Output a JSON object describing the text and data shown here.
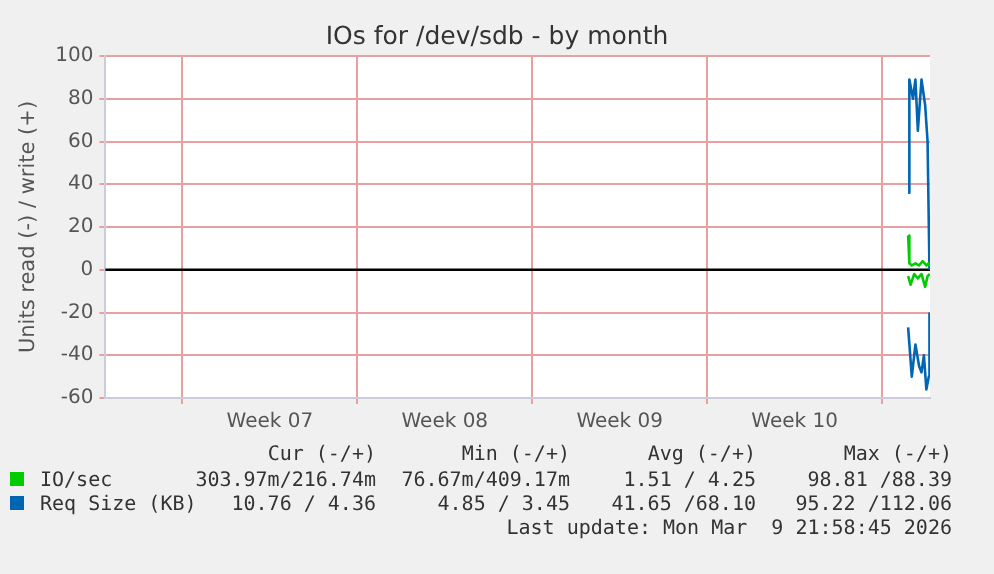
{
  "chart_data": {
    "type": "line",
    "title": "IOs for /dev/sdb - by month",
    "ylabel": "Units read (-) / write (+)",
    "xlim": [
      "2026-02-04T22:00",
      "2026-03-09T22:00"
    ],
    "xticks": [
      {
        "value": "2026-02-08T00:00",
        "label": null
      },
      {
        "value": "2026-02-11T12:00",
        "label": "Week 07"
      },
      {
        "value": "2026-02-15T00:00",
        "label": null
      },
      {
        "value": "2026-02-18T12:00",
        "label": "Week 08"
      },
      {
        "value": "2026-02-22T00:00",
        "label": null
      },
      {
        "value": "2026-02-25T12:00",
        "label": "Week 09"
      },
      {
        "value": "2026-03-01T00:00",
        "label": null
      },
      {
        "value": "2026-03-04T12:00",
        "label": "Week 10"
      },
      {
        "value": "2026-03-08T00:00",
        "label": null
      }
    ],
    "ylim": [
      -60,
      100
    ],
    "yticks": [
      -60,
      -40,
      -20,
      0,
      20,
      40,
      60,
      80,
      100
    ],
    "grid": true,
    "legend": "bottom left",
    "marker": "none",
    "line_style": "solid",
    "ref_lines": [
      {
        "axis": "y",
        "value": 0,
        "color": "#000000"
      }
    ],
    "series": [
      {
        "name": "IO/sec",
        "color": "#00cc00",
        "x": [
          "2026-03-09T01:00",
          "2026-03-09T02:10",
          "2026-03-09T04:30",
          "2026-03-09T08:00",
          "2026-03-09T11:30",
          "2026-03-09T15:00",
          "2026-03-09T18:30",
          "2026-03-09T20:50",
          "2026-03-09T21:50"
        ],
        "values": [
          16,
          3,
          2,
          3,
          2,
          4,
          2,
          3,
          2
        ]
      },
      {
        "color": "#00cc00",
        "x": [
          "2026-03-09T01:00",
          "2026-03-09T03:20",
          "2026-03-09T06:50",
          "2026-03-09T10:20",
          "2026-03-09T13:50",
          "2026-03-09T17:20",
          "2026-03-09T19:40",
          "2026-03-09T21:50"
        ],
        "values": [
          -3,
          -7,
          -2,
          -4,
          -2,
          -8,
          -3,
          -2
        ]
      },
      {
        "name": "Req Size (KB)",
        "color": "#0066b3",
        "x": [
          "2026-03-09T01:00",
          "2026-03-09T02:10",
          "2026-03-09T05:40",
          "2026-03-09T08:00",
          "2026-03-09T10:20",
          "2026-03-09T13:50",
          "2026-03-09T17:20",
          "2026-03-09T19:40",
          "2026-03-09T21:30"
        ],
        "values": [
          36,
          89,
          80,
          89,
          65,
          89,
          77,
          60,
          0
        ]
      },
      {
        "color": "#0066b3",
        "x": [
          "2026-03-09T01:00",
          "2026-03-09T04:30",
          "2026-03-09T08:00",
          "2026-03-09T11:30",
          "2026-03-09T13:50",
          "2026-03-09T16:10",
          "2026-03-09T18:30",
          "2026-03-09T20:50",
          "2026-03-09T21:30"
        ],
        "values": [
          -27,
          -50,
          -35,
          -45,
          -48,
          -40,
          -56,
          -50,
          -20
        ]
      }
    ],
    "annotations": [
      "Cur (-/+)",
      "Min (-/+)",
      "Avg (-/+)",
      "Max (-/+)",
      "303.97m/216.74m",
      "76.67m/409.17m",
      "1.51 / 4.25",
      "98.81 /88.39",
      "10.76 / 4.36",
      "4.85 / 3.45",
      "41.65 /68.10",
      "95.22 /112.06",
      "Last update: Mon Mar  9 21:58:45 2026"
    ]
  }
}
